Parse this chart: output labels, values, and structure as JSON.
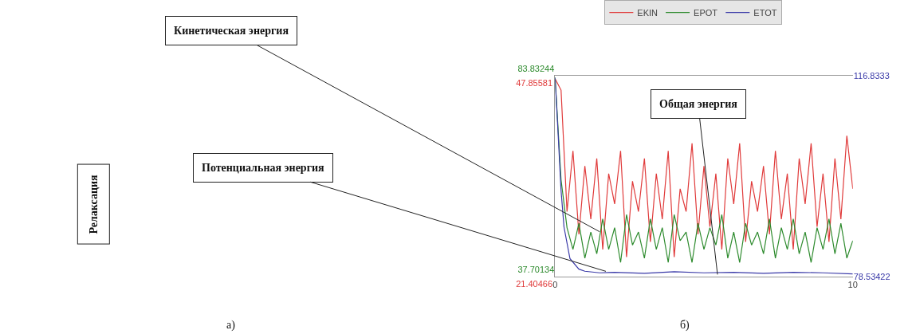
{
  "chart_data": {
    "type": "line",
    "x": [
      0,
      0.2,
      0.4,
      0.6,
      0.8,
      1,
      1.2,
      1.4,
      1.6,
      1.8,
      2,
      2.2,
      2.4,
      2.6,
      2.8,
      3,
      3.2,
      3.4,
      3.6,
      3.8,
      4,
      4.2,
      4.4,
      4.6,
      4.8,
      5,
      5.2,
      5.4,
      5.6,
      5.8,
      6,
      6.2,
      6.4,
      6.6,
      6.8,
      7,
      7.2,
      7.4,
      7.6,
      7.8,
      8,
      8.2,
      8.4,
      8.6,
      8.8,
      9,
      9.2,
      9.4,
      9.6,
      9.8,
      10
    ],
    "series": [
      {
        "name": "EKIN",
        "color": "#e03a3a",
        "values": [
          47.5,
          46,
          30,
          38,
          27,
          36,
          29,
          37,
          25,
          35,
          31,
          38,
          24,
          34,
          30,
          37,
          26,
          35,
          29,
          38,
          24,
          33,
          30,
          39,
          27,
          36,
          28,
          35,
          25,
          37,
          31,
          39,
          26,
          34,
          30,
          36,
          27,
          38,
          29,
          35,
          25,
          37,
          31,
          39,
          28,
          35,
          26,
          37,
          29,
          40,
          33
        ]
      },
      {
        "name": "EPOT",
        "color": "#2e8b2e",
        "axis": "y2",
        "values": [
          83.5,
          60,
          49,
          44,
          50,
          42,
          48,
          43,
          51,
          44,
          49,
          41,
          52,
          45,
          48,
          42,
          51,
          44,
          49,
          41,
          52,
          46,
          48,
          41,
          50,
          44,
          49,
          45,
          52,
          42,
          48,
          41,
          50,
          45,
          48,
          43,
          51,
          42,
          49,
          44,
          51,
          43,
          48,
          41,
          49,
          44,
          51,
          43,
          50,
          42,
          46
        ]
      },
      {
        "name": "ETOT",
        "color": "#3a3aa8",
        "axis": "y3",
        "x": [
          0,
          0.1,
          0.2,
          0.3,
          0.5,
          0.8,
          1,
          1.5,
          2,
          3,
          4,
          5,
          6,
          7,
          8,
          9,
          10
        ],
        "values": [
          116.5,
          106,
          95,
          88,
          82,
          80,
          79.6,
          79.3,
          79.4,
          79.2,
          79.5,
          79.3,
          79.4,
          79.2,
          79.4,
          79.3,
          79.1
        ]
      }
    ],
    "xlim": [
      0,
      10
    ],
    "xticks": [
      0,
      10
    ],
    "ylim": [
      21.40466,
      47.85581
    ],
    "yticks": [
      21.40466,
      47.85581
    ],
    "y2lim": [
      37.70134,
      83.83244
    ],
    "y2ticks": [
      37.70134,
      83.83244
    ],
    "y3lim": [
      78.53422,
      116.8333
    ],
    "y3ticks": [
      78.53422,
      116.8333
    ],
    "legend": "top",
    "line_style": "solid",
    "annotations": [
      "Кинетическая энергия",
      "Потенциальная энергия",
      "Общая энергия",
      "Релаксация",
      "а)",
      "б)"
    ]
  }
}
